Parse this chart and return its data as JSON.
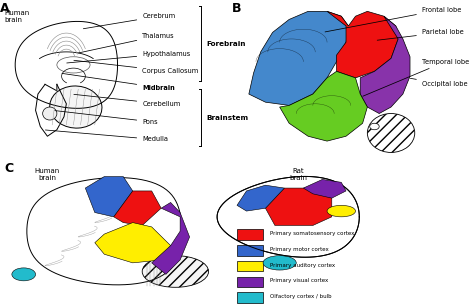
{
  "panel_labels": [
    "A",
    "B",
    "C"
  ],
  "panel_label_fontsize": 9,
  "panel_label_weight": "bold",
  "background_color": "#ffffff",
  "title_A": "Human\nbrain",
  "title_C_human": "Human\nbrain",
  "title_C_rat": "Rat\nbrain",
  "forebrain_label": "Forebrain",
  "brainstem_label": "Brainstem",
  "annotations_A": [
    [
      "Cerebrum",
      [
        0.34,
        0.82
      ],
      [
        0.6,
        0.9
      ]
    ],
    [
      "Thalamus",
      [
        0.32,
        0.67
      ],
      [
        0.6,
        0.78
      ]
    ],
    [
      "Hypothalamus",
      [
        0.27,
        0.61
      ],
      [
        0.6,
        0.67
      ]
    ],
    [
      "Corpus Callosum",
      [
        0.3,
        0.63
      ],
      [
        0.6,
        0.56
      ]
    ],
    [
      "Midbrain",
      [
        0.25,
        0.55
      ],
      [
        0.6,
        0.46
      ],
      true
    ],
    [
      "Cerebellum",
      [
        0.3,
        0.42
      ],
      [
        0.6,
        0.36
      ]
    ],
    [
      "Pons",
      [
        0.22,
        0.32
      ],
      [
        0.6,
        0.25
      ]
    ],
    [
      "Medulla",
      [
        0.18,
        0.2
      ],
      [
        0.6,
        0.14
      ]
    ]
  ],
  "annotations_B": [
    [
      "Frontal lobe",
      [
        0.36,
        0.8
      ],
      [
        0.78,
        0.94
      ]
    ],
    [
      "Parietal lobe",
      [
        0.58,
        0.75
      ],
      [
        0.78,
        0.8
      ]
    ],
    [
      "Temporal lobe",
      [
        0.52,
        0.4
      ],
      [
        0.78,
        0.62
      ]
    ],
    [
      "Occipital lobe",
      [
        0.72,
        0.52
      ],
      [
        0.78,
        0.48
      ]
    ]
  ],
  "legend_items": [
    [
      "Primary somatosensory cortex",
      "#EE1111"
    ],
    [
      "Primary motor cortex",
      "#3366CC"
    ],
    [
      "Primary auditory cortex",
      "#FFEE00"
    ],
    [
      "Primary visual cortex",
      "#7722AA"
    ],
    [
      "Olfactory cortex / bulb",
      "#22BBCC"
    ]
  ],
  "lobe_colors": {
    "frontal": "#4488CC",
    "parietal": "#EE1111",
    "temporal": "#66CC22",
    "occipital": "#8833AA"
  },
  "cortex_colors": {
    "somatosensory": "#EE1111",
    "motor": "#3366CC",
    "auditory": "#FFEE00",
    "visual": "#7722AA",
    "olfactory": "#22BBCC"
  }
}
